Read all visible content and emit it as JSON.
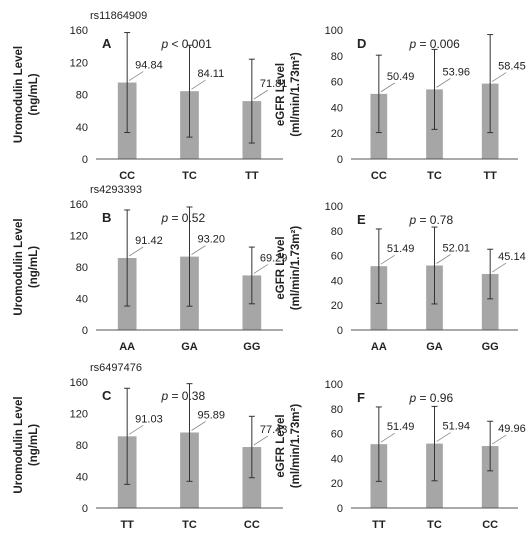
{
  "chart_data": [
    {
      "type": "bar",
      "panel_letter": "A",
      "snp": "rs11864909",
      "ylabel": [
        "Uromodulin Level",
        "(ng/mL)"
      ],
      "categories": [
        "CC",
        "TC",
        "TT"
      ],
      "values": [
        94.84,
        84.11,
        71.81
      ],
      "value_labels": [
        "94.84",
        "84.11",
        "71.81"
      ],
      "errors": [
        62,
        57,
        52
      ],
      "p_prefix": "p",
      "p_text": " < 0.001",
      "ylim": [
        0,
        160
      ],
      "yticks": [
        0,
        40,
        80,
        120,
        160
      ],
      "bar_color": "#a6a6a6"
    },
    {
      "type": "bar",
      "panel_letter": "D",
      "snp": "",
      "ylabel": [
        "eGFR Level",
        "(ml/min/1.73m²)"
      ],
      "categories": [
        "CC",
        "TC",
        "TT"
      ],
      "values": [
        50.49,
        53.96,
        58.45
      ],
      "value_labels": [
        "50.49",
        "53.96",
        "58.45"
      ],
      "errors": [
        30,
        31,
        38
      ],
      "p_prefix": "p",
      "p_text": " = 0.006",
      "ylim": [
        0,
        100
      ],
      "yticks": [
        0,
        20,
        40,
        60,
        80,
        100
      ],
      "bar_color": "#a6a6a6"
    },
    {
      "type": "bar",
      "panel_letter": "B",
      "snp": "rs4293393",
      "ylabel": [
        "Uromodulin Level",
        "(ng/mL)"
      ],
      "categories": [
        "AA",
        "GA",
        "GG"
      ],
      "values": [
        91.42,
        93.2,
        69.29
      ],
      "value_labels": [
        "91.42",
        "93.20",
        "69.29"
      ],
      "errors": [
        61,
        63,
        36
      ],
      "p_prefix": "p",
      "p_text": " = 0.52",
      "ylim": [
        0,
        160
      ],
      "yticks": [
        0,
        40,
        80,
        120,
        160
      ],
      "bar_color": "#a6a6a6"
    },
    {
      "type": "bar",
      "panel_letter": "E",
      "snp": "",
      "ylabel": [
        "eGFR Level",
        "(ml/min/1.73m²)"
      ],
      "categories": [
        "AA",
        "GA",
        "GG"
      ],
      "values": [
        51.49,
        52.01,
        45.14
      ],
      "value_labels": [
        "51.49",
        "52.01",
        "45.14"
      ],
      "errors": [
        30,
        31,
        20
      ],
      "p_prefix": "p",
      "p_text": " = 0.78",
      "ylim": [
        0,
        100
      ],
      "yticks": [
        0,
        20,
        40,
        60,
        80,
        100
      ],
      "bar_color": "#a6a6a6"
    },
    {
      "type": "bar",
      "panel_letter": "C",
      "snp": "rs6497476",
      "ylabel": [
        "Uromodulin Level",
        "(ng/mL)"
      ],
      "categories": [
        "TT",
        "TC",
        "CC"
      ],
      "values": [
        91.03,
        95.89,
        77.43
      ],
      "value_labels": [
        "91.03",
        "95.89",
        "77.43"
      ],
      "errors": [
        61,
        62,
        39
      ],
      "p_prefix": "p",
      "p_text": " = 0.38",
      "ylim": [
        0,
        160
      ],
      "yticks": [
        0,
        40,
        80,
        120,
        160
      ],
      "bar_color": "#a6a6a6"
    },
    {
      "type": "bar",
      "panel_letter": "F",
      "snp": "",
      "ylabel": [
        "eGFR Level",
        "(ml/min/1.73m²)"
      ],
      "categories": [
        "TT",
        "TC",
        "CC"
      ],
      "values": [
        51.49,
        51.94,
        49.96
      ],
      "value_labels": [
        "51.49",
        "51.94",
        "49.96"
      ],
      "errors": [
        30,
        30,
        20
      ],
      "p_prefix": "p",
      "p_text": " = 0.96",
      "ylim": [
        0,
        100
      ],
      "yticks": [
        0,
        20,
        40,
        60,
        80,
        100
      ],
      "bar_color": "#a6a6a6"
    }
  ]
}
